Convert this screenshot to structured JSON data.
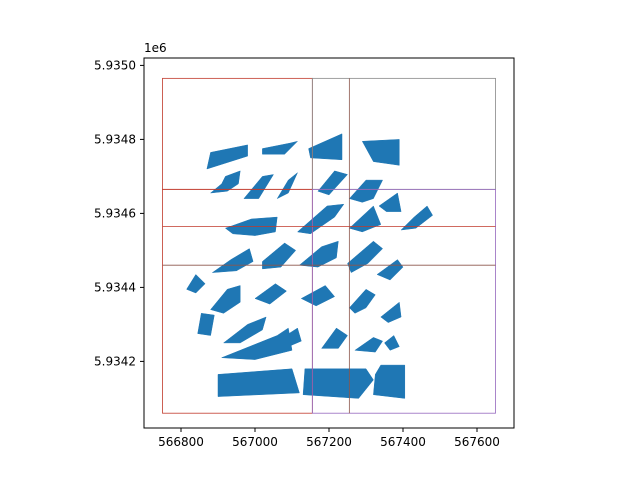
{
  "chart_data": {
    "type": "map",
    "title": "",
    "xlabel": "",
    "ylabel": "",
    "y_offset_label": "1e6",
    "xlim": [
      566700,
      567700
    ],
    "ylim": [
      5934020,
      5935020
    ],
    "xticks": [
      566800,
      567000,
      567200,
      567400,
      567600
    ],
    "xtick_labels": [
      "566800",
      "567000",
      "567200",
      "567400",
      "567600"
    ],
    "yticks": [
      5934200,
      5934400,
      5934600,
      5934800,
      5935000
    ],
    "ytick_labels": [
      "5.9342",
      "5.9344",
      "5.9346",
      "5.9348",
      "5.9350"
    ],
    "grid": false,
    "colors": {
      "buildings": "#1f77b4",
      "tile_red": "#c0392b",
      "tile_brown": "#8c564b",
      "tile_purple": "#9467bd",
      "tile_gray": "#888888"
    },
    "tiles": [
      {
        "x0": 566750,
        "y0": 5934665,
        "x1": 567155,
        "y1": 5934965,
        "color": "tile_red"
      },
      {
        "x0": 566750,
        "y0": 5934060,
        "x1": 567155,
        "y1": 5934665,
        "color": "tile_red"
      },
      {
        "x0": 567155,
        "y0": 5934665,
        "x1": 567650,
        "y1": 5934965,
        "color": "tile_gray"
      },
      {
        "x0": 567155,
        "y0": 5934060,
        "x1": 567650,
        "y1": 5934665,
        "color": "tile_purple"
      },
      {
        "x0": 567255,
        "y0": 5934060,
        "x1": 567255,
        "y1": 5934965,
        "color": "tile_brown"
      },
      {
        "x0": 566750,
        "y0": 5934460,
        "x1": 567650,
        "y1": 5934460,
        "color": "tile_brown"
      },
      {
        "x0": 566750,
        "y0": 5934565,
        "x1": 567650,
        "y1": 5934565,
        "color": "tile_red"
      }
    ],
    "buildings": [
      [
        [
          566870,
          5934720
        ],
        [
          566980,
          5934755
        ],
        [
          566980,
          5934785
        ],
        [
          566880,
          5934765
        ]
      ],
      [
        [
          567020,
          5934775
        ],
        [
          567095,
          5934790
        ],
        [
          567115,
          5934795
        ],
        [
          567080,
          5934760
        ],
        [
          567020,
          5934760
        ]
      ],
      [
        [
          567145,
          5934775
        ],
        [
          567235,
          5934815
        ],
        [
          567235,
          5934745
        ],
        [
          567150,
          5934750
        ]
      ],
      [
        [
          567290,
          5934795
        ],
        [
          567390,
          5934800
        ],
        [
          567390,
          5934730
        ],
        [
          567320,
          5934740
        ]
      ],
      [
        [
          566880,
          5934655
        ],
        [
          566910,
          5934680
        ],
        [
          566920,
          5934700
        ],
        [
          566960,
          5934715
        ],
        [
          566955,
          5934680
        ],
        [
          566925,
          5934660
        ]
      ],
      [
        [
          566970,
          5934640
        ],
        [
          567020,
          5934700
        ],
        [
          567050,
          5934705
        ],
        [
          567010,
          5934640
        ]
      ],
      [
        [
          567060,
          5934640
        ],
        [
          567090,
          5934690
        ],
        [
          567115,
          5934710
        ],
        [
          567090,
          5934655
        ]
      ],
      [
        [
          567170,
          5934660
        ],
        [
          567215,
          5934715
        ],
        [
          567250,
          5934705
        ],
        [
          567200,
          5934650
        ]
      ],
      [
        [
          567255,
          5934640
        ],
        [
          567300,
          5934690
        ],
        [
          567345,
          5934690
        ],
        [
          567320,
          5934640
        ],
        [
          567290,
          5934630
        ]
      ],
      [
        [
          567335,
          5934620
        ],
        [
          567385,
          5934655
        ],
        [
          567395,
          5934605
        ],
        [
          567355,
          5934605
        ]
      ],
      [
        [
          566920,
          5934560
        ],
        [
          566990,
          5934585
        ],
        [
          567060,
          5934590
        ],
        [
          567055,
          5934550
        ],
        [
          567000,
          5934540
        ],
        [
          566940,
          5934545
        ]
      ],
      [
        [
          567115,
          5934550
        ],
        [
          567195,
          5934620
        ],
        [
          567240,
          5934625
        ],
        [
          567215,
          5934590
        ],
        [
          567150,
          5934545
        ]
      ],
      [
        [
          567255,
          5934560
        ],
        [
          567320,
          5934620
        ],
        [
          567340,
          5934570
        ],
        [
          567290,
          5934550
        ]
      ],
      [
        [
          567395,
          5934555
        ],
        [
          567430,
          5934590
        ],
        [
          567465,
          5934620
        ],
        [
          567480,
          5934595
        ],
        [
          567435,
          5934560
        ]
      ],
      [
        [
          566885,
          5934440
        ],
        [
          566935,
          5934475
        ],
        [
          566985,
          5934505
        ],
        [
          566995,
          5934470
        ],
        [
          566950,
          5934445
        ]
      ],
      [
        [
          567020,
          5934470
        ],
        [
          567080,
          5934520
        ],
        [
          567110,
          5934500
        ],
        [
          567070,
          5934455
        ],
        [
          567020,
          5934450
        ]
      ],
      [
        [
          567120,
          5934460
        ],
        [
          567180,
          5934510
        ],
        [
          567225,
          5934525
        ],
        [
          567220,
          5934480
        ],
        [
          567170,
          5934455
        ]
      ],
      [
        [
          567250,
          5934465
        ],
        [
          567320,
          5934525
        ],
        [
          567345,
          5934505
        ],
        [
          567305,
          5934465
        ],
        [
          567260,
          5934440
        ]
      ],
      [
        [
          567330,
          5934435
        ],
        [
          567385,
          5934475
        ],
        [
          567400,
          5934455
        ],
        [
          567365,
          5934420
        ]
      ],
      [
        [
          566815,
          5934395
        ],
        [
          566840,
          5934435
        ],
        [
          566865,
          5934410
        ],
        [
          566840,
          5934385
        ]
      ],
      [
        [
          566880,
          5934340
        ],
        [
          566925,
          5934395
        ],
        [
          566960,
          5934405
        ],
        [
          566960,
          5934360
        ],
        [
          566915,
          5934330
        ]
      ],
      [
        [
          567000,
          5934370
        ],
        [
          567055,
          5934410
        ],
        [
          567085,
          5934390
        ],
        [
          567040,
          5934355
        ]
      ],
      [
        [
          567125,
          5934370
        ],
        [
          567190,
          5934405
        ],
        [
          567215,
          5934375
        ],
        [
          567165,
          5934350
        ]
      ],
      [
        [
          567255,
          5934345
        ],
        [
          567300,
          5934395
        ],
        [
          567325,
          5934380
        ],
        [
          567300,
          5934345
        ],
        [
          567270,
          5934330
        ]
      ],
      [
        [
          567340,
          5934320
        ],
        [
          567390,
          5934360
        ],
        [
          567395,
          5934320
        ],
        [
          567360,
          5934305
        ]
      ],
      [
        [
          566845,
          5934275
        ],
        [
          566855,
          5934330
        ],
        [
          566890,
          5934325
        ],
        [
          566880,
          5934270
        ]
      ],
      [
        [
          566915,
          5934250
        ],
        [
          566980,
          5934300
        ],
        [
          567030,
          5934320
        ],
        [
          567020,
          5934285
        ],
        [
          566960,
          5934250
        ]
      ],
      [
        [
          567060,
          5934255
        ],
        [
          567115,
          5934290
        ],
        [
          567125,
          5934255
        ],
        [
          567090,
          5934240
        ]
      ],
      [
        [
          566910,
          5934210
        ],
        [
          567060,
          5934270
        ],
        [
          567090,
          5934290
        ],
        [
          567100,
          5934230
        ],
        [
          567000,
          5934205
        ]
      ],
      [
        [
          567180,
          5934235
        ],
        [
          567220,
          5934290
        ],
        [
          567250,
          5934270
        ],
        [
          567225,
          5934235
        ]
      ],
      [
        [
          567270,
          5934230
        ],
        [
          567320,
          5934265
        ],
        [
          567345,
          5934255
        ],
        [
          567325,
          5934225
        ]
      ],
      [
        [
          567350,
          5934250
        ],
        [
          567375,
          5934270
        ],
        [
          567390,
          5934240
        ],
        [
          567365,
          5934230
        ]
      ],
      [
        [
          566900,
          5934105
        ],
        [
          566900,
          5934165
        ],
        [
          567100,
          5934180
        ],
        [
          567120,
          5934115
        ]
      ],
      [
        [
          567130,
          5934110
        ],
        [
          567135,
          5934180
        ],
        [
          567300,
          5934180
        ],
        [
          567320,
          5934150
        ],
        [
          567280,
          5934100
        ]
      ],
      [
        [
          567320,
          5934110
        ],
        [
          567325,
          5934165
        ],
        [
          567340,
          5934190
        ],
        [
          567405,
          5934190
        ],
        [
          567405,
          5934100
        ]
      ]
    ]
  }
}
